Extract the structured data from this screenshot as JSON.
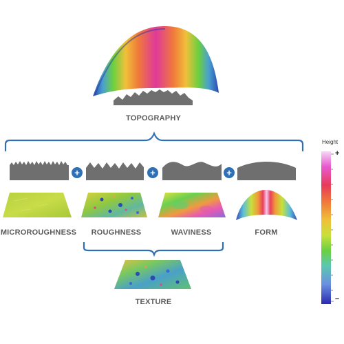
{
  "labels": {
    "topography": "TOPOGRAPHY",
    "microroughness": "MICROROUGHNESS",
    "roughness": "ROUGHNESS",
    "waviness": "WAVINESS",
    "form": "FORM",
    "texture": "TEXTURE"
  },
  "color_scale": {
    "title": "Height",
    "max_symbol": "+",
    "min_symbol": "–",
    "gradient": [
      "#f4d8f4",
      "#e85ad0",
      "#e83a5a",
      "#f0783a",
      "#f0c03a",
      "#c8e03a",
      "#6ad040",
      "#5ac8b0",
      "#6a90e0",
      "#2a2ab0"
    ]
  },
  "colors": {
    "bracket": "#2f6fb5",
    "plus_circle": "#2f6fb5",
    "profile": "#6f6f6f",
    "label_text": "#5a5a5a"
  },
  "operator_symbol": "+"
}
